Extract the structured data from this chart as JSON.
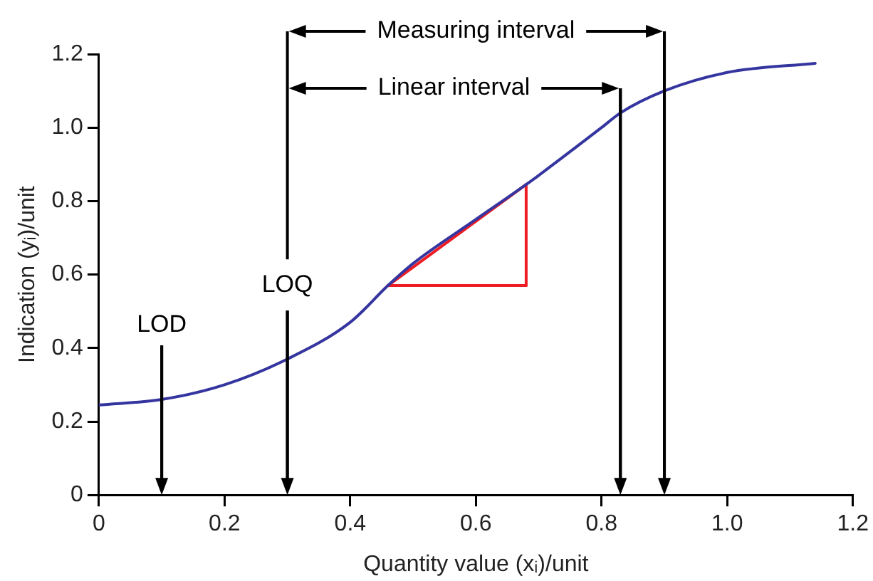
{
  "chart_data": {
    "type": "line",
    "xlabel": "Quantity value (xᵢ)/unit",
    "ylabel": "Indication (yᵢ)/unit",
    "xlim": [
      0,
      1.2
    ],
    "xticks": [
      0,
      0.2,
      0.4,
      {
        "value": 0.6,
        "label": "0.6"
      },
      0.8,
      {
        "value": 1.0,
        "label": "1.0"
      },
      1.2
    ],
    "ylim": [
      0,
      1.2
    ],
    "yticks": [
      0,
      0.2,
      0.4,
      0.6,
      0.8,
      {
        "value": 1.0,
        "label": "1.0"
      },
      1.2
    ],
    "grid": false,
    "legend": false,
    "series": [
      {
        "color": "#3535a0",
        "x": [
          0,
          0.1,
          0.2,
          0.3,
          0.4,
          0.46,
          0.5,
          0.6,
          0.68,
          0.7,
          0.8,
          0.83,
          0.9,
          1.0,
          1.14
        ],
        "values": [
          0.245,
          0.26,
          0.3,
          0.37,
          0.47,
          0.57,
          0.63,
          0.75,
          0.845,
          0.87,
          1.0,
          1.04,
          1.1,
          1.15,
          1.175
        ]
      },
      {
        "type": "line",
        "color": "#ee1c24",
        "x": [
          0.46,
          0.68
        ],
        "values": [
          0.57,
          0.845
        ]
      },
      {
        "type": "line",
        "color": "#ee1c24",
        "x": [
          0.46,
          0.68
        ],
        "values": [
          0.57,
          0.57
        ]
      },
      {
        "type": "line",
        "color": "#ee1c24",
        "x": [
          0.68,
          0.68
        ],
        "values": [
          0.57,
          0.845
        ]
      }
    ],
    "ref_lines": [
      {
        "axis": "x",
        "value": 0.1,
        "label": "LOD"
      },
      {
        "axis": "x",
        "value": 0.3,
        "label": "LOQ"
      },
      {
        "axis": "x",
        "value": 0.83
      },
      {
        "axis": "x",
        "value": 0.9
      }
    ],
    "annotations": [
      "Measuring interval",
      "Linear interval"
    ]
  }
}
